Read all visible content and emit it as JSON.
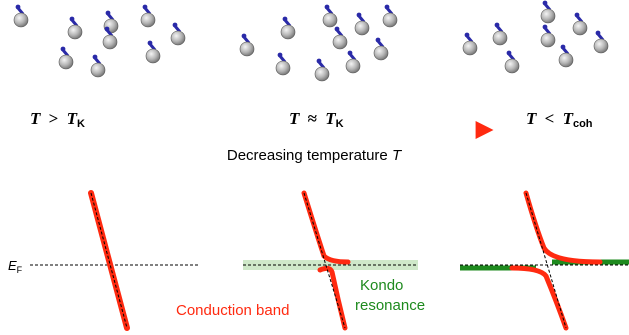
{
  "regimes": [
    {
      "symbol": "T",
      "relation": ">",
      "ref_symbol": "T",
      "ref_sub": "K"
    },
    {
      "symbol": "T",
      "relation": "≈",
      "ref_symbol": "T",
      "ref_sub": "K"
    },
    {
      "symbol": "T",
      "relation": "<",
      "ref_symbol": "T",
      "ref_sub": "coh"
    }
  ],
  "arrow_caption": "Decreasing temperature ",
  "arrow_caption_var": "T",
  "fermi_level": {
    "symbol": "E",
    "sub": "F"
  },
  "labels": {
    "conduction_band": "Conduction band",
    "kondo_line1": "Kondo",
    "kondo_line2": "resonance"
  },
  "colors": {
    "band": "#ff2a10",
    "kondo": "#1e8a1e",
    "kondo_shade": "#cfe8c9",
    "gradient_start": "#1f3ad6",
    "gradient_end": "#ff2a10",
    "electron_spin": "#2a2aa8",
    "conduction_spin": "#d01818"
  }
}
